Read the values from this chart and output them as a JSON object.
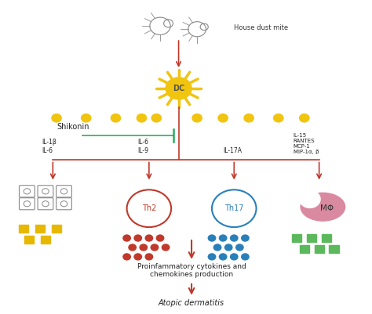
{
  "background_color": "#ffffff",
  "title": "",
  "arrow_color": "#c0392b",
  "inhibit_line_color": "#27ae60",
  "dc_color": "#f1c40f",
  "dc_label": "DC",
  "house_dust_mite_label": "House dust mite",
  "shikonin_label": "Shikonin",
  "th2_label": "Th2",
  "th17_label": "Th17",
  "mph_label": "MΦ",
  "cell_circle_color_th2": "#c0392b",
  "cell_circle_color_th17": "#2980b9",
  "mph_color": "#d98aa0",
  "neutrophil_circle_color": "#aaaaaa",
  "yellow_dot_color": "#f1c40f",
  "yellow_sq_color": "#e6b800",
  "red_dot_color": "#c0392b",
  "blue_dot_color": "#2980b9",
  "green_sq_color": "#5cb85c",
  "label_il1b_il6": "IL-1β\nIL-6",
  "label_il6_il9": "IL-6\nIL-9",
  "label_il17a": "IL-17A",
  "label_right": "IL-15\nRANTES\nMCP-1\nMIP-1α, β",
  "label_proinflamm": "Proinfammatory cytokines and\nchemokines production",
  "label_atopic": "Atopic dermatitis"
}
